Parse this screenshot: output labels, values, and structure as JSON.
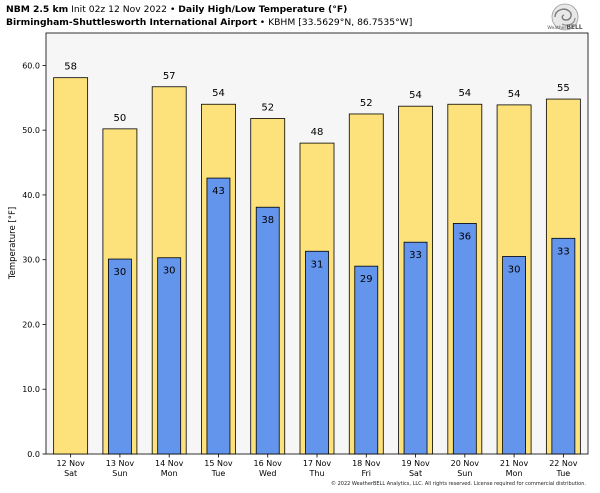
{
  "header": {
    "model": "NBM 2.5 km",
    "init": "Init 02z 12 Nov 2022",
    "separator": "•",
    "product": "Daily High/Low Temperature (°F)",
    "station": "Birmingham-Shuttlesworth International Airport",
    "station_detail": "KBHM [33.5629°N, 86.7535°W]"
  },
  "logo": {
    "text_prefix": "Weather",
    "text_suffix": "BELL",
    "icon": "weatherbell-swirl-logo"
  },
  "footer": {
    "copyright": "© 2022 WeatherBELL Analytics, LLC. All rights reserved. License required for commercial distribution."
  },
  "colors": {
    "high": "#fde27c",
    "low": "#6495ed",
    "plot_bg": "#f6f6f6",
    "edge": "#000000"
  },
  "chart_data": {
    "type": "bar",
    "categories": [
      [
        "12 Nov",
        "Sat"
      ],
      [
        "13 Nov",
        "Sun"
      ],
      [
        "14 Nov",
        "Mon"
      ],
      [
        "15 Nov",
        "Tue"
      ],
      [
        "16 Nov",
        "Wed"
      ],
      [
        "17 Nov",
        "Thu"
      ],
      [
        "18 Nov",
        "Fri"
      ],
      [
        "19 Nov",
        "Sat"
      ],
      [
        "20 Nov",
        "Sun"
      ],
      [
        "21 Nov",
        "Mon"
      ],
      [
        "22 Nov",
        "Tue"
      ]
    ],
    "series": [
      {
        "values": [
          58.1,
          50.2,
          56.7,
          54.0,
          51.8,
          48.0,
          52.5,
          53.7,
          54.0,
          53.9,
          54.8
        ],
        "labels": [
          "58",
          "50",
          "57",
          "54",
          "52",
          "48",
          "52",
          "54",
          "54",
          "54",
          "55"
        ]
      },
      {
        "values": [
          null,
          30.1,
          30.3,
          42.6,
          38.1,
          31.3,
          29.0,
          32.7,
          35.6,
          30.5,
          33.3
        ],
        "labels": [
          null,
          "30",
          "30",
          "43",
          "38",
          "31",
          "29",
          "33",
          "36",
          "30",
          "33"
        ]
      }
    ],
    "ylabel": "Temperature [°F]",
    "ylim": [
      0,
      65
    ],
    "yticks": [
      0,
      10,
      20,
      30,
      40,
      50,
      60
    ],
    "ytick_labels": [
      "0.0",
      "10.0",
      "20.0",
      "30.0",
      "40.0",
      "50.0",
      "60.0"
    ],
    "grid": false,
    "legend": "none"
  }
}
